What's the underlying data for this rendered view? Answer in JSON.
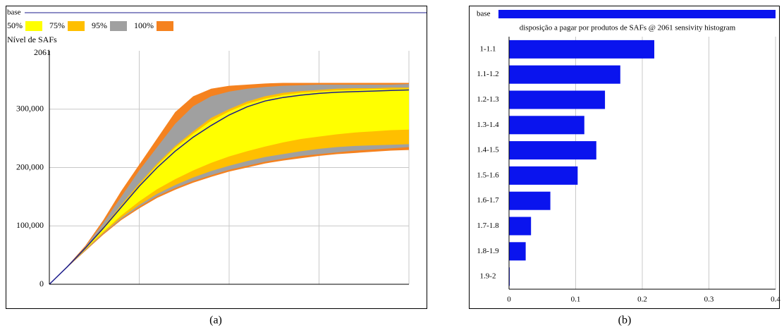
{
  "chart_data": [
    {
      "type": "area",
      "y_label": "Nível de SAFs",
      "time_label": "2061",
      "caption": "(a)",
      "x": [
        0,
        2,
        4,
        6,
        8,
        10,
        12,
        14,
        16,
        18,
        20,
        22,
        24,
        26,
        28,
        30,
        32,
        34,
        36,
        38,
        40
      ],
      "xlim": [
        0,
        40
      ],
      "xticks": [
        0,
        10,
        20,
        30,
        40
      ],
      "ylim": [
        0,
        400000
      ],
      "yticks": [
        0,
        {
          "value": 100000,
          "label": "100,000"
        },
        {
          "value": 200000,
          "label": "200,000"
        },
        {
          "value": 300000,
          "label": "300,000"
        }
      ],
      "grid": true,
      "series": [
        {
          "name": "base",
          "color": "#1c1c8c",
          "values": [
            0,
            30000,
            62000,
            96000,
            132000,
            168000,
            200000,
            228000,
            252000,
            272000,
            290000,
            304000,
            314000,
            320000,
            324000,
            327000,
            329000,
            330000,
            331000,
            332000,
            333000
          ]
        }
      ],
      "bands": [
        {
          "name": "50%",
          "color": "#ffff00",
          "upper": [
            0,
            30000,
            62000,
            97000,
            134000,
            170000,
            204000,
            234000,
            258000,
            280000,
            296000,
            309000,
            318000,
            324000,
            328000,
            330000,
            332000,
            333000,
            334000,
            334000,
            335000
          ],
          "lower": [
            0,
            29000,
            60000,
            90000,
            118000,
            142000,
            163000,
            180000,
            195000,
            208000,
            219000,
            228000,
            236000,
            243000,
            249000,
            253000,
            257000,
            260000,
            262000,
            264000,
            265000
          ]
        },
        {
          "name": "75%",
          "color": "#ffbf00",
          "upper": [
            0,
            30000,
            63000,
            98000,
            136000,
            173000,
            207000,
            237000,
            262000,
            285000,
            300000,
            313000,
            322000,
            328000,
            331000,
            333000,
            335000,
            336000,
            336000,
            337000,
            337000
          ],
          "lower": [
            0,
            29000,
            59000,
            88000,
            114000,
            136000,
            155000,
            170000,
            183000,
            194000,
            203000,
            211000,
            218000,
            223000,
            228000,
            232000,
            235000,
            237000,
            238000,
            239000,
            240000
          ]
        },
        {
          "name": "95%",
          "color": "#a0a0a0",
          "upper": [
            0,
            30000,
            64000,
            105000,
            150000,
            195000,
            235000,
            275000,
            305000,
            322000,
            330000,
            335000,
            338000,
            340000,
            341000,
            342000,
            342000,
            342000,
            342000,
            342000,
            343000
          ],
          "lower": [
            0,
            29000,
            58000,
            87000,
            112000,
            133000,
            151000,
            165000,
            177000,
            187000,
            196000,
            203000,
            210000,
            215000,
            220000,
            223000,
            226000,
            229000,
            231000,
            233000,
            235000
          ]
        },
        {
          "name": "100%",
          "color": "#f5821f",
          "upper": [
            0,
            31000,
            66000,
            110000,
            160000,
            205000,
            250000,
            295000,
            322000,
            335000,
            340000,
            342000,
            344000,
            345000,
            345000,
            345000,
            345000,
            345000,
            345000,
            345000,
            345000
          ],
          "lower": [
            0,
            29000,
            57000,
            85000,
            110000,
            130000,
            148000,
            162000,
            174000,
            184000,
            193000,
            200000,
            207000,
            212000,
            216000,
            220000,
            223000,
            225000,
            227000,
            229000,
            230000
          ]
        }
      ]
    },
    {
      "type": "bar",
      "orientation": "horizontal",
      "title": "disposição a pagar por produtos de SAFs @ 2061 sensivity histogram",
      "caption": "(b)",
      "legend": "base",
      "color": "#0a14ee",
      "categories": [
        "1-1.1",
        "1.1-1.2",
        "1.2-1.3",
        "1.3-1.4",
        "1.4-1.5",
        "1.5-1.6",
        "1.6-1.7",
        "1.7-1.8",
        "1.8-1.9",
        "1.9-2"
      ],
      "values": [
        0.218,
        0.167,
        0.144,
        0.113,
        0.131,
        0.103,
        0.062,
        0.033,
        0.025,
        0.001
      ],
      "xlim": [
        0,
        0.4
      ],
      "xticks": [
        0,
        0.1,
        0.2,
        0.3,
        0.4
      ],
      "grid": true
    }
  ]
}
